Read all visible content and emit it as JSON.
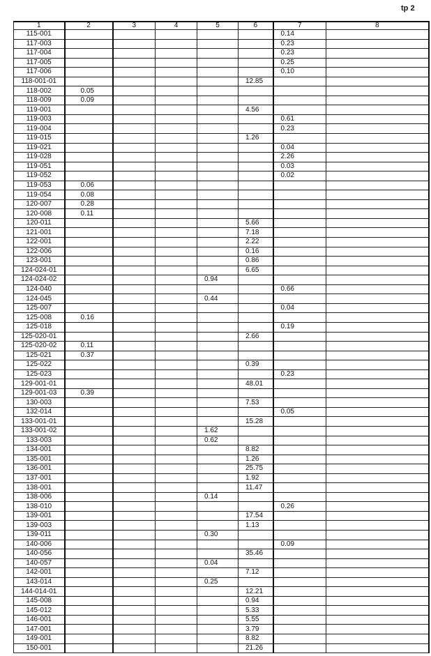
{
  "page_label": "tp 2",
  "columns": [
    "1",
    "2",
    "3",
    "4",
    "5",
    "6",
    "7",
    "8"
  ],
  "rows": [
    [
      "115-001",
      "",
      "",
      "",
      "",
      "",
      "0.14",
      ""
    ],
    [
      "117-003",
      "",
      "",
      "",
      "",
      "",
      "0.23",
      ""
    ],
    [
      "117-004",
      "",
      "",
      "",
      "",
      "",
      "0.23",
      ""
    ],
    [
      "117-005",
      "",
      "",
      "",
      "",
      "",
      "0.25",
      ""
    ],
    [
      "117-006",
      "",
      "",
      "",
      "",
      "",
      "0.10",
      ""
    ],
    [
      "118-001-01",
      "",
      "",
      "",
      "",
      "12.85",
      "",
      ""
    ],
    [
      "118-002",
      "0.05",
      "",
      "",
      "",
      "",
      "",
      ""
    ],
    [
      "118-009",
      "0.09",
      "",
      "",
      "",
      "",
      "",
      ""
    ],
    [
      "119-001",
      "",
      "",
      "",
      "",
      "4.56",
      "",
      ""
    ],
    [
      "119-003",
      "",
      "",
      "",
      "",
      "",
      "0.61",
      ""
    ],
    [
      "119-004",
      "",
      "",
      "",
      "",
      "",
      "0.23",
      ""
    ],
    [
      "119-015",
      "",
      "",
      "",
      "",
      "1.26",
      "",
      ""
    ],
    [
      "119-021",
      "",
      "",
      "",
      "",
      "",
      "0.04",
      ""
    ],
    [
      "119-028",
      "",
      "",
      "",
      "",
      "",
      "2.26",
      ""
    ],
    [
      "119-051",
      "",
      "",
      "",
      "",
      "",
      "0.03",
      ""
    ],
    [
      "119-052",
      "",
      "",
      "",
      "",
      "",
      "0.02",
      ""
    ],
    [
      "119-053",
      "0.06",
      "",
      "",
      "",
      "",
      "",
      ""
    ],
    [
      "119-054",
      "0.08",
      "",
      "",
      "",
      "",
      "",
      ""
    ],
    [
      "120-007",
      "0.28",
      "",
      "",
      "",
      "",
      "",
      ""
    ],
    [
      "120-008",
      "0.11",
      "",
      "",
      "",
      "",
      "",
      ""
    ],
    [
      "120-011",
      "",
      "",
      "",
      "",
      "5.66",
      "",
      ""
    ],
    [
      "121-001",
      "",
      "",
      "",
      "",
      "7.18",
      "",
      ""
    ],
    [
      "122-001",
      "",
      "",
      "",
      "",
      "2.22",
      "",
      ""
    ],
    [
      "122-006",
      "",
      "",
      "",
      "",
      "0.16",
      "",
      ""
    ],
    [
      "123-001",
      "",
      "",
      "",
      "",
      "0.86",
      "",
      ""
    ],
    [
      "124-024-01",
      "",
      "",
      "",
      "",
      "6.65",
      "",
      ""
    ],
    [
      "124-024-02",
      "",
      "",
      "",
      "0.94",
      "",
      "",
      ""
    ],
    [
      "124-040",
      "",
      "",
      "",
      "",
      "",
      "0.66",
      ""
    ],
    [
      "124-045",
      "",
      "",
      "",
      "0.44",
      "",
      "",
      ""
    ],
    [
      "125-007",
      "",
      "",
      "",
      "",
      "",
      "0.04",
      ""
    ],
    [
      "125-008",
      "0.16",
      "",
      "",
      "",
      "",
      "",
      ""
    ],
    [
      "125-018",
      "",
      "",
      "",
      "",
      "",
      "0.19",
      ""
    ],
    [
      "125-020-01",
      "",
      "",
      "",
      "",
      "2.66",
      "",
      ""
    ],
    [
      "125-020-02",
      "0.11",
      "",
      "",
      "",
      "",
      "",
      ""
    ],
    [
      "125-021",
      "0.37",
      "",
      "",
      "",
      "",
      "",
      ""
    ],
    [
      "125-022",
      "",
      "",
      "",
      "",
      "0.39",
      "",
      ""
    ],
    [
      "125-023",
      "",
      "",
      "",
      "",
      "",
      "0.23",
      ""
    ],
    [
      "129-001-01",
      "",
      "",
      "",
      "",
      "48.01",
      "",
      ""
    ],
    [
      "129-001-03",
      "0.39",
      "",
      "",
      "",
      "",
      "",
      ""
    ],
    [
      "130-003",
      "",
      "",
      "",
      "",
      "7.53",
      "",
      ""
    ],
    [
      "132-014",
      "",
      "",
      "",
      "",
      "",
      "0.05",
      ""
    ],
    [
      "133-001-01",
      "",
      "",
      "",
      "",
      "15.28",
      "",
      ""
    ],
    [
      "133-001-02",
      "",
      "",
      "",
      "1.62",
      "",
      "",
      ""
    ],
    [
      "133-003",
      "",
      "",
      "",
      "0.62",
      "",
      "",
      ""
    ],
    [
      "134-001",
      "",
      "",
      "",
      "",
      "8.82",
      "",
      ""
    ],
    [
      "135-001",
      "",
      "",
      "",
      "",
      "1.26",
      "",
      ""
    ],
    [
      "136-001",
      "",
      "",
      "",
      "",
      "25.75",
      "",
      ""
    ],
    [
      "137-001",
      "",
      "",
      "",
      "",
      "1.92",
      "",
      ""
    ],
    [
      "138-001",
      "",
      "",
      "",
      "",
      "11.47",
      "",
      ""
    ],
    [
      "138-006",
      "",
      "",
      "",
      "0.14",
      "",
      "",
      ""
    ],
    [
      "138-010",
      "",
      "",
      "",
      "",
      "",
      "0.26",
      ""
    ],
    [
      "139-001",
      "",
      "",
      "",
      "",
      "17.54",
      "",
      ""
    ],
    [
      "139-003",
      "",
      "",
      "",
      "",
      "1.13",
      "",
      ""
    ],
    [
      "139-011",
      "",
      "",
      "",
      "0.30",
      "",
      "",
      ""
    ],
    [
      "140-006",
      "",
      "",
      "",
      "",
      "",
      "0.09",
      ""
    ],
    [
      "140-056",
      "",
      "",
      "",
      "",
      "35.46",
      "",
      ""
    ],
    [
      "140-057",
      "",
      "",
      "",
      "0.04",
      "",
      "",
      ""
    ],
    [
      "142-001",
      "",
      "",
      "",
      "",
      "7.12",
      "",
      ""
    ],
    [
      "143-014",
      "",
      "",
      "",
      "0.25",
      "",
      "",
      ""
    ],
    [
      "144-014-01",
      "",
      "",
      "",
      "",
      "12.21",
      "",
      ""
    ],
    [
      "145-008",
      "",
      "",
      "",
      "",
      "0.94",
      "",
      ""
    ],
    [
      "145-012",
      "",
      "",
      "",
      "",
      "5.33",
      "",
      ""
    ],
    [
      "146-001",
      "",
      "",
      "",
      "",
      "5.55",
      "",
      ""
    ],
    [
      "147-001",
      "",
      "",
      "",
      "",
      "3.79",
      "",
      ""
    ],
    [
      "149-001",
      "",
      "",
      "",
      "",
      "8.82",
      "",
      ""
    ],
    [
      "150-001",
      "",
      "",
      "",
      "",
      "21.26",
      "",
      ""
    ]
  ]
}
